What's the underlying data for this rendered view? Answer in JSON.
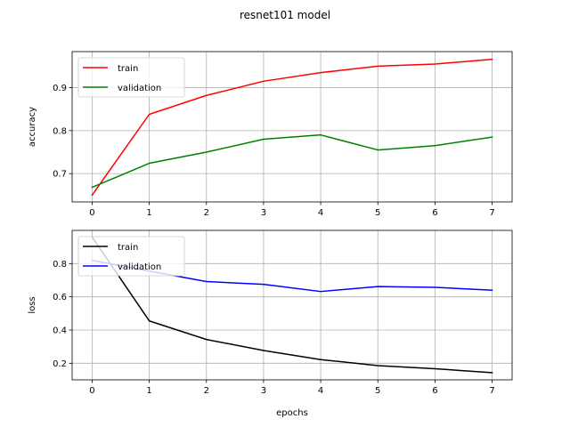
{
  "title": "resnet101 model",
  "chart_data": [
    {
      "type": "line",
      "ylabel": "accuracy",
      "xlabel": "",
      "x": [
        0,
        1,
        2,
        3,
        4,
        5,
        6,
        7
      ],
      "xlim": [
        -0.35,
        7.35
      ],
      "ylim": [
        0.634,
        0.984
      ],
      "xticks": [
        0,
        1,
        2,
        3,
        4,
        5,
        6,
        7
      ],
      "yticks": [
        0.7,
        0.8,
        0.9
      ],
      "grid": true,
      "legend": "upper left",
      "series": [
        {
          "name": "train",
          "color": "#ff0000",
          "values": [
            0.65,
            0.838,
            0.882,
            0.915,
            0.935,
            0.95,
            0.955,
            0.966
          ]
        },
        {
          "name": "validation",
          "color": "#008000",
          "values": [
            0.668,
            0.724,
            0.75,
            0.78,
            0.79,
            0.755,
            0.765,
            0.785
          ]
        }
      ]
    },
    {
      "type": "line",
      "ylabel": "loss",
      "xlabel": "epochs",
      "x": [
        0,
        1,
        2,
        3,
        4,
        5,
        6,
        7
      ],
      "xlim": [
        -0.35,
        7.35
      ],
      "ylim": [
        0.1,
        1.0
      ],
      "xticks": [
        0,
        1,
        2,
        3,
        4,
        5,
        6,
        7
      ],
      "yticks": [
        0.2,
        0.4,
        0.6,
        0.8
      ],
      "grid": true,
      "legend": "upper left",
      "series": [
        {
          "name": "train",
          "color": "#000000",
          "values": [
            0.96,
            0.455,
            0.343,
            0.277,
            0.222,
            0.186,
            0.167,
            0.143
          ]
        },
        {
          "name": "validation",
          "color": "#0000ff",
          "values": [
            0.82,
            0.755,
            0.692,
            0.675,
            0.632,
            0.662,
            0.657,
            0.64
          ]
        }
      ]
    }
  ]
}
